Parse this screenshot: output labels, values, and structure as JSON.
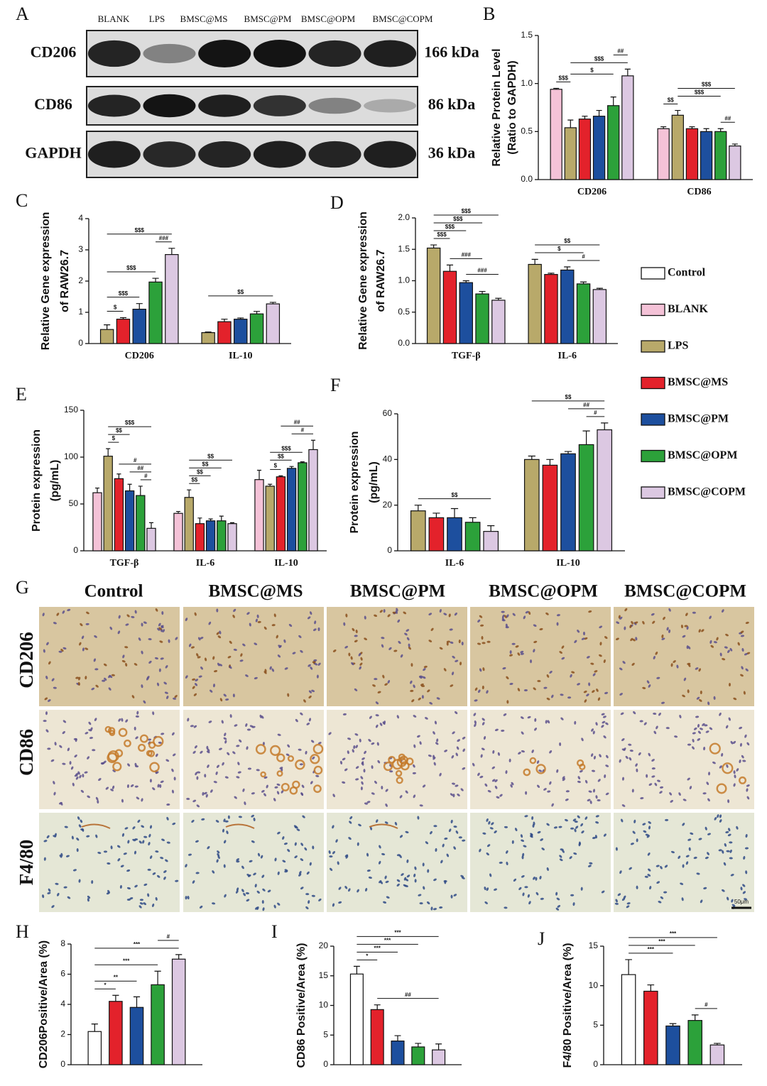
{
  "panel_labels": [
    "A",
    "B",
    "C",
    "D",
    "E",
    "F",
    "G",
    "H",
    "I",
    "J"
  ],
  "blot": {
    "lanes": [
      "BLANK",
      "LPS",
      "BMSC@MS",
      "BMSC@PM",
      "BMSC@OPM",
      "BMSC@COPM"
    ],
    "rows": [
      {
        "protein": "CD206",
        "size": "166 kDa"
      },
      {
        "protein": "CD86",
        "size": "86 kDa"
      },
      {
        "protein": "GAPDH",
        "size": "36 kDa"
      }
    ]
  },
  "legend": [
    {
      "name": "Control",
      "color": "#ffffff"
    },
    {
      "name": "BLANK",
      "color": "#f4c2d7"
    },
    {
      "name": "LPS",
      "color": "#b8a96a"
    },
    {
      "name": "BMSC@MS",
      "color": "#e3222b"
    },
    {
      "name": "BMSC@PM",
      "color": "#1d4f9e"
    },
    {
      "name": "BMSC@OPM",
      "color": "#2ca13a"
    },
    {
      "name": "BMSC@COPM",
      "color": "#dcc8e2"
    }
  ],
  "ihc": {
    "columns": [
      "Control",
      "BMSC@MS",
      "BMSC@PM",
      "BMSC@OPM",
      "BMSC@COPM"
    ],
    "rows": [
      "CD206",
      "CD86",
      "F4/80"
    ],
    "scale_bar": "50μm"
  },
  "chart_data": [
    {
      "type": "bar",
      "ylabel": [
        "Relative Protein Level",
        "(Ratio to GAPDH)"
      ],
      "categories": [
        "CD206",
        "CD86"
      ],
      "series": [
        {
          "name": "BLANK",
          "color": "#f4c2d7",
          "values": [
            0.94,
            0.53
          ],
          "errors": [
            0.01,
            0.02
          ]
        },
        {
          "name": "LPS",
          "color": "#b8a96a",
          "values": [
            0.54,
            0.67
          ],
          "errors": [
            0.08,
            0.05
          ]
        },
        {
          "name": "BMSC@MS",
          "color": "#e3222b",
          "values": [
            0.63,
            0.53
          ],
          "errors": [
            0.03,
            0.02
          ]
        },
        {
          "name": "BMSC@PM",
          "color": "#1d4f9e",
          "values": [
            0.66,
            0.5
          ],
          "errors": [
            0.06,
            0.03
          ]
        },
        {
          "name": "BMSC@OPM",
          "color": "#2ca13a",
          "values": [
            0.77,
            0.5
          ],
          "errors": [
            0.09,
            0.03
          ]
        },
        {
          "name": "BMSC@COPM",
          "color": "#dcc8e2",
          "values": [
            1.08,
            0.35
          ],
          "errors": [
            0.07,
            0.02
          ]
        }
      ],
      "ylim": [
        0,
        1.5
      ],
      "yticks": [
        {
          "value": 0,
          "label": "0.0"
        },
        0.5,
        {
          "value": 1,
          "label": "1.0"
        },
        1.5
      ],
      "annotations": [
        {
          "label": "$$$",
          "category": "CD206",
          "from": "BLANK",
          "to": "LPS"
        },
        {
          "label": "$",
          "category": "CD206",
          "from": "LPS",
          "to": "BMSC@OPM"
        },
        {
          "label": "$$$",
          "category": "CD206",
          "from": "LPS",
          "to": "BMSC@COPM"
        },
        {
          "label": "##",
          "category": "CD206",
          "from": "BMSC@OPM",
          "to": "BMSC@COPM"
        },
        {
          "label": "##",
          "category": "CD86",
          "from": "BMSC@OPM",
          "to": "BMSC@COPM"
        },
        {
          "label": "$$",
          "category": "CD86",
          "from": "BLANK",
          "to": "LPS"
        },
        {
          "label": "$$$",
          "category": "CD86",
          "from": "LPS",
          "to": "BMSC@OPM"
        },
        {
          "label": "$$$",
          "category": "CD86",
          "from": "LPS",
          "to": "BMSC@COPM"
        }
      ]
    },
    {
      "type": "bar",
      "ylabel": [
        "Relative Gene expression",
        "of RAW26.7"
      ],
      "categories": [
        "CD206",
        "IL-10"
      ],
      "series": [
        {
          "name": "LPS",
          "color": "#b8a96a",
          "values": [
            0.45,
            0.35
          ],
          "errors": [
            0.15,
            0.02
          ]
        },
        {
          "name": "BMSC@MS",
          "color": "#e3222b",
          "values": [
            0.78,
            0.7
          ],
          "errors": [
            0.05,
            0.08
          ]
        },
        {
          "name": "BMSC@PM",
          "color": "#1d4f9e",
          "values": [
            1.1,
            0.78
          ],
          "errors": [
            0.18,
            0.04
          ]
        },
        {
          "name": "BMSC@OPM",
          "color": "#2ca13a",
          "values": [
            1.97,
            0.95
          ],
          "errors": [
            0.12,
            0.08
          ]
        },
        {
          "name": "BMSC@COPM",
          "color": "#dcc8e2",
          "values": [
            2.85,
            1.27
          ],
          "errors": [
            0.2,
            0.05
          ]
        }
      ],
      "ylim": [
        0,
        4
      ],
      "yticks": [
        0,
        1,
        2,
        3,
        4
      ],
      "annotations": [
        {
          "label": "$",
          "category": "CD206",
          "from": "LPS",
          "to": "BMSC@MS"
        },
        {
          "label": "$$$",
          "category": "CD206",
          "from": "LPS",
          "to": "BMSC@PM"
        },
        {
          "label": "$$$",
          "category": "CD206",
          "from": "LPS",
          "to": "BMSC@OPM"
        },
        {
          "label": "###",
          "category": "CD206",
          "from": "BMSC@OPM",
          "to": "BMSC@COPM"
        },
        {
          "label": "$$$",
          "category": "CD206",
          "from": "LPS",
          "to": "BMSC@COPM"
        },
        {
          "label": "$$",
          "category": "IL-10",
          "from": "LPS",
          "to": "BMSC@COPM"
        }
      ]
    },
    {
      "type": "bar",
      "ylabel": [
        "Relative Gene expression",
        "of RAW26.7"
      ],
      "categories": [
        "TGF-β",
        "IL-6"
      ],
      "series": [
        {
          "name": "LPS",
          "color": "#b8a96a",
          "values": [
            1.52,
            1.26
          ],
          "errors": [
            0.05,
            0.08
          ]
        },
        {
          "name": "BMSC@MS",
          "color": "#e3222b",
          "values": [
            1.15,
            1.1
          ],
          "errors": [
            0.1,
            0.02
          ]
        },
        {
          "name": "BMSC@PM",
          "color": "#1d4f9e",
          "values": [
            0.97,
            1.17
          ],
          "errors": [
            0.03,
            0.05
          ]
        },
        {
          "name": "BMSC@OPM",
          "color": "#2ca13a",
          "values": [
            0.79,
            0.95
          ],
          "errors": [
            0.04,
            0.03
          ]
        },
        {
          "name": "BMSC@COPM",
          "color": "#dcc8e2",
          "values": [
            0.69,
            0.86
          ],
          "errors": [
            0.03,
            0.02
          ]
        }
      ],
      "ylim": [
        0,
        2
      ],
      "yticks": [
        {
          "value": 0,
          "label": "0.0"
        },
        0.5,
        {
          "value": 1,
          "label": "1.0"
        },
        1.5,
        {
          "value": 2,
          "label": "2.0"
        }
      ],
      "annotations": [
        {
          "label": "###",
          "category": "TGF-β",
          "from": "BMSC@PM",
          "to": "BMSC@COPM"
        },
        {
          "label": "###",
          "category": "TGF-β",
          "from": "BMSC@MS",
          "to": "BMSC@OPM"
        },
        {
          "label": "$$$",
          "category": "TGF-β",
          "from": "LPS",
          "to": "BMSC@MS"
        },
        {
          "label": "$$$",
          "category": "TGF-β",
          "from": "LPS",
          "to": "BMSC@PM"
        },
        {
          "label": "$$$",
          "category": "TGF-β",
          "from": "LPS",
          "to": "BMSC@OPM"
        },
        {
          "label": "$$$",
          "category": "TGF-β",
          "from": "LPS",
          "to": "BMSC@COPM"
        },
        {
          "label": "#",
          "category": "IL-6",
          "from": "BMSC@PM",
          "to": "BMSC@COPM"
        },
        {
          "label": "$",
          "category": "IL-6",
          "from": "LPS",
          "to": "BMSC@OPM"
        },
        {
          "label": "$$",
          "category": "IL-6",
          "from": "LPS",
          "to": "BMSC@COPM"
        }
      ]
    },
    {
      "type": "bar",
      "ylabel": [
        "Protein expression",
        "(pg/mL)"
      ],
      "categories": [
        "TGF-β",
        "IL-6",
        "IL-10"
      ],
      "series": [
        {
          "name": "BLANK",
          "color": "#f4c2d7",
          "values": [
            62,
            40,
            76
          ],
          "errors": [
            5,
            2,
            10
          ]
        },
        {
          "name": "LPS",
          "color": "#b8a96a",
          "values": [
            101,
            57,
            69
          ],
          "errors": [
            8,
            8,
            2
          ]
        },
        {
          "name": "BMSC@MS",
          "color": "#e3222b",
          "values": [
            77,
            29,
            79
          ],
          "errors": [
            5,
            6,
            1
          ]
        },
        {
          "name": "BMSC@PM",
          "color": "#1d4f9e",
          "values": [
            64,
            32,
            88
          ],
          "errors": [
            7,
            2,
            2
          ]
        },
        {
          "name": "BMSC@OPM",
          "color": "#2ca13a",
          "values": [
            59,
            32,
            94
          ],
          "errors": [
            10,
            5,
            1
          ]
        },
        {
          "name": "BMSC@COPM",
          "color": "#dcc8e2",
          "values": [
            24,
            29,
            108
          ],
          "errors": [
            6,
            1,
            10
          ]
        }
      ],
      "ylim": [
        0,
        150
      ],
      "yticks": [
        0,
        50,
        100,
        150
      ],
      "annotations": [
        {
          "label": "#",
          "category": "TGF-β",
          "from": "BMSC@OPM",
          "to": "BMSC@COPM"
        },
        {
          "label": "##",
          "category": "TGF-β",
          "from": "BMSC@PM",
          "to": "BMSC@COPM"
        },
        {
          "label": "#",
          "category": "TGF-β",
          "from": "BMSC@MS",
          "to": "BMSC@COPM"
        },
        {
          "label": "$",
          "category": "TGF-β",
          "from": "LPS",
          "to": "BMSC@MS"
        },
        {
          "label": "$$",
          "category": "TGF-β",
          "from": "LPS",
          "to": "BMSC@PM"
        },
        {
          "label": "$$$",
          "category": "TGF-β",
          "from": "LPS",
          "to": "BMSC@COPM"
        },
        {
          "label": "$$",
          "category": "IL-6",
          "from": "LPS",
          "to": "BMSC@MS"
        },
        {
          "label": "$$",
          "category": "IL-6",
          "from": "LPS",
          "to": "BMSC@PM"
        },
        {
          "label": "$$",
          "category": "IL-6",
          "from": "LPS",
          "to": "BMSC@OPM"
        },
        {
          "label": "$$",
          "category": "IL-6",
          "from": "LPS",
          "to": "BMSC@COPM"
        },
        {
          "label": "$",
          "category": "IL-10",
          "from": "LPS",
          "to": "BMSC@MS"
        },
        {
          "label": "$$",
          "category": "IL-10",
          "from": "LPS",
          "to": "BMSC@PM"
        },
        {
          "label": "$$$",
          "category": "IL-10",
          "from": "LPS",
          "to": "BMSC@OPM"
        },
        {
          "label": "#",
          "category": "IL-10",
          "from": "BMSC@PM",
          "to": "BMSC@COPM"
        },
        {
          "label": "##",
          "category": "IL-10",
          "from": "BMSC@MS",
          "to": "BMSC@COPM"
        }
      ]
    },
    {
      "type": "bar",
      "ylabel": [
        "Protein expression",
        "(pg/mL)"
      ],
      "categories": [
        "IL-6",
        "IL-10"
      ],
      "series": [
        {
          "name": "LPS",
          "color": "#b8a96a",
          "values": [
            17.5,
            40
          ],
          "errors": [
            2.5,
            1.5
          ]
        },
        {
          "name": "BMSC@MS",
          "color": "#e3222b",
          "values": [
            14.5,
            37.5
          ],
          "errors": [
            2,
            2.5
          ]
        },
        {
          "name": "BMSC@PM",
          "color": "#1d4f9e",
          "values": [
            14.5,
            42.5
          ],
          "errors": [
            4,
            1
          ]
        },
        {
          "name": "BMSC@OPM",
          "color": "#2ca13a",
          "values": [
            12.5,
            46.5
          ],
          "errors": [
            2,
            6
          ]
        },
        {
          "name": "BMSC@COPM",
          "color": "#dcc8e2",
          "values": [
            8.5,
            53
          ],
          "errors": [
            2.5,
            3
          ]
        }
      ],
      "ylim": [
        0,
        60
      ],
      "yticks": [
        0,
        20,
        40,
        60
      ],
      "annotations": [
        {
          "label": "$$",
          "category": "IL-6",
          "from": "LPS",
          "to": "BMSC@COPM"
        },
        {
          "label": "#",
          "category": "IL-10",
          "from": "BMSC@OPM",
          "to": "BMSC@COPM"
        },
        {
          "label": "##",
          "category": "IL-10",
          "from": "BMSC@PM",
          "to": "BMSC@COPM"
        },
        {
          "label": "$$",
          "category": "IL-10",
          "from": "LPS",
          "to": "BMSC@COPM"
        }
      ]
    },
    {
      "type": "bar",
      "ylabel": [
        "CD206Positive/Area (%)"
      ],
      "categories": [
        null
      ],
      "series": [
        {
          "name": "Control",
          "color": "#ffffff",
          "values": [
            2.2
          ],
          "errors": [
            0.5
          ]
        },
        {
          "name": "BMSC@MS",
          "color": "#e3222b",
          "values": [
            4.2
          ],
          "errors": [
            0.4
          ]
        },
        {
          "name": "BMSC@PM",
          "color": "#1d4f9e",
          "values": [
            3.8
          ],
          "errors": [
            0.7
          ]
        },
        {
          "name": "BMSC@OPM",
          "color": "#2ca13a",
          "values": [
            5.3
          ],
          "errors": [
            0.9
          ]
        },
        {
          "name": "BMSC@COPM",
          "color": "#dcc8e2",
          "values": [
            7.0
          ],
          "errors": [
            0.3
          ]
        }
      ],
      "ylim": [
        0,
        8
      ],
      "yticks": [
        0,
        2,
        4,
        6,
        8
      ],
      "annotations": [
        {
          "label": "*",
          "from": "Control",
          "to": "BMSC@MS"
        },
        {
          "label": "**",
          "from": "Control",
          "to": "BMSC@PM"
        },
        {
          "label": "***",
          "from": "Control",
          "to": "BMSC@OPM"
        },
        {
          "label": "***",
          "from": "Control",
          "to": "BMSC@COPM"
        },
        {
          "label": "#",
          "from": "BMSC@OPM",
          "to": "BMSC@COPM"
        }
      ]
    },
    {
      "type": "bar",
      "ylabel": [
        "CD86 Positive/Area (%)"
      ],
      "categories": [
        null
      ],
      "series": [
        {
          "name": "Control",
          "color": "#ffffff",
          "values": [
            15.3
          ],
          "errors": [
            1.3
          ]
        },
        {
          "name": "BMSC@MS",
          "color": "#e3222b",
          "values": [
            9.3
          ],
          "errors": [
            0.8
          ]
        },
        {
          "name": "BMSC@PM",
          "color": "#1d4f9e",
          "values": [
            4.0
          ],
          "errors": [
            0.9
          ]
        },
        {
          "name": "BMSC@OPM",
          "color": "#2ca13a",
          "values": [
            3.0
          ],
          "errors": [
            0.6
          ]
        },
        {
          "name": "BMSC@COPM",
          "color": "#dcc8e2",
          "values": [
            2.5
          ],
          "errors": [
            1.0
          ]
        }
      ],
      "ylim": [
        0,
        20
      ],
      "yticks": [
        0,
        5,
        10,
        15,
        20
      ],
      "annotations": [
        {
          "label": "##",
          "from": "BMSC@MS",
          "to": "BMSC@COPM"
        },
        {
          "label": "*",
          "from": "Control",
          "to": "BMSC@MS"
        },
        {
          "label": "***",
          "from": "Control",
          "to": "BMSC@PM"
        },
        {
          "label": "***",
          "from": "Control",
          "to": "BMSC@OPM"
        },
        {
          "label": "***",
          "from": "Control",
          "to": "BMSC@COPM"
        }
      ]
    },
    {
      "type": "bar",
      "ylabel": [
        "F4/80 Positive/Area (%)"
      ],
      "categories": [
        null
      ],
      "series": [
        {
          "name": "Control",
          "color": "#ffffff",
          "values": [
            11.4
          ],
          "errors": [
            1.9
          ]
        },
        {
          "name": "BMSC@MS",
          "color": "#e3222b",
          "values": [
            9.3
          ],
          "errors": [
            0.8
          ]
        },
        {
          "name": "BMSC@PM",
          "color": "#1d4f9e",
          "values": [
            4.9
          ],
          "errors": [
            0.3
          ]
        },
        {
          "name": "BMSC@OPM",
          "color": "#2ca13a",
          "values": [
            5.6
          ],
          "errors": [
            0.7
          ]
        },
        {
          "name": "BMSC@COPM",
          "color": "#dcc8e2",
          "values": [
            2.5
          ],
          "errors": [
            0.2
          ]
        }
      ],
      "ylim": [
        0,
        15
      ],
      "yticks": [
        0,
        5,
        10,
        15
      ],
      "annotations": [
        {
          "label": "#",
          "from": "BMSC@OPM",
          "to": "BMSC@COPM"
        },
        {
          "label": "***",
          "from": "Control",
          "to": "BMSC@PM"
        },
        {
          "label": "***",
          "from": "Control",
          "to": "BMSC@OPM"
        },
        {
          "label": "***",
          "from": "Control",
          "to": "BMSC@COPM"
        }
      ]
    }
  ]
}
